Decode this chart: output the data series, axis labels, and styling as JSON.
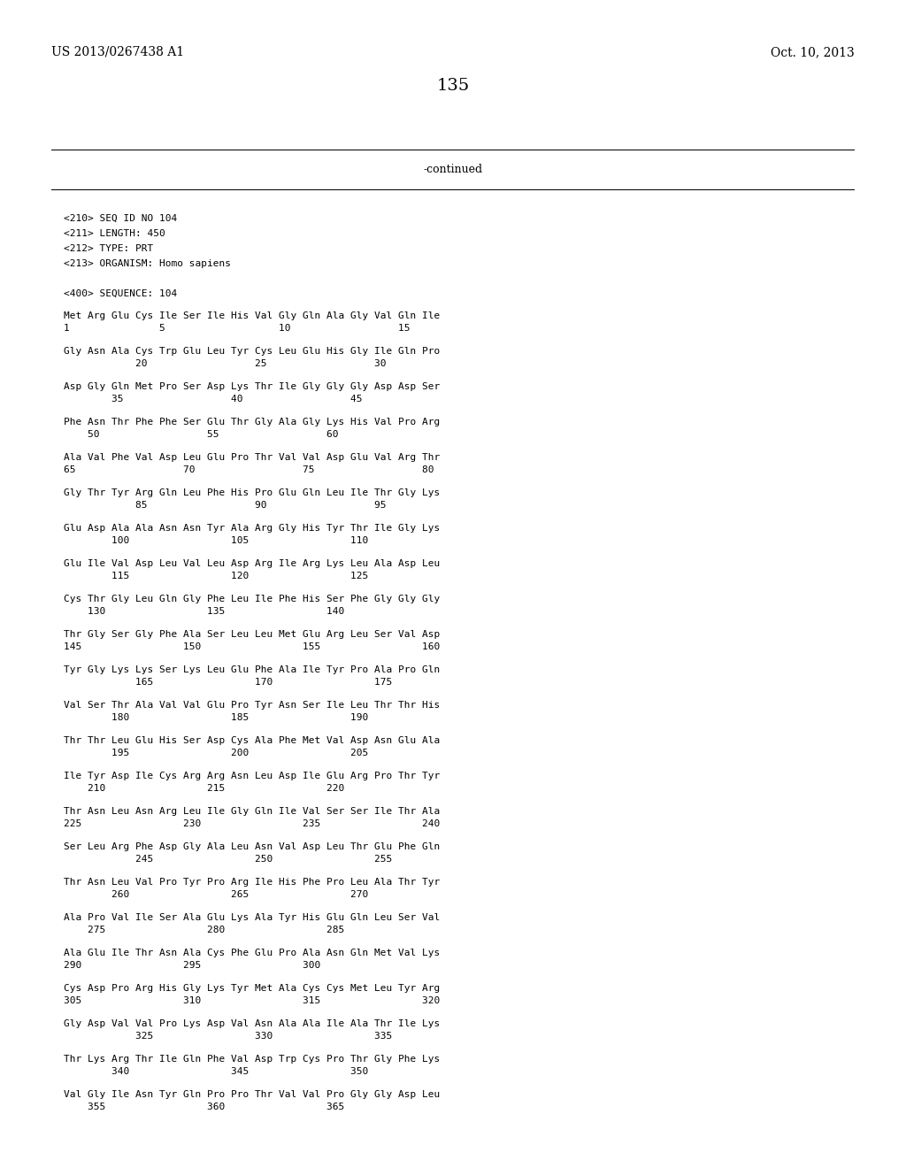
{
  "header_left": "US 2013/0267438 A1",
  "header_right": "Oct. 10, 2013",
  "page_number": "135",
  "continued_text": "-continued",
  "background_color": "#ffffff",
  "text_color": "#000000",
  "meta_lines": [
    "<210> SEQ ID NO 104",
    "<211> LENGTH: 450",
    "<212> TYPE: PRT",
    "<213> ORGANISM: Homo sapiens",
    "",
    "<400> SEQUENCE: 104"
  ],
  "sequence_blocks": [
    [
      "Met Arg Glu Cys Ile Ser Ile His Val Gly Gln Ala Gly Val Gln Ile",
      "1               5                   10                  15"
    ],
    [
      "Gly Asn Ala Cys Trp Glu Leu Tyr Cys Leu Glu His Gly Ile Gln Pro",
      "            20                  25                  30"
    ],
    [
      "Asp Gly Gln Met Pro Ser Asp Lys Thr Ile Gly Gly Gly Asp Asp Ser",
      "        35                  40                  45"
    ],
    [
      "Phe Asn Thr Phe Phe Ser Glu Thr Gly Ala Gly Lys His Val Pro Arg",
      "    50                  55                  60"
    ],
    [
      "Ala Val Phe Val Asp Leu Glu Pro Thr Val Val Asp Glu Val Arg Thr",
      "65                  70                  75                  80"
    ],
    [
      "Gly Thr Tyr Arg Gln Leu Phe His Pro Glu Gln Leu Ile Thr Gly Lys",
      "            85                  90                  95"
    ],
    [
      "Glu Asp Ala Ala Asn Asn Tyr Ala Arg Gly His Tyr Thr Ile Gly Lys",
      "        100                 105                 110"
    ],
    [
      "Glu Ile Val Asp Leu Val Leu Asp Arg Ile Arg Lys Leu Ala Asp Leu",
      "        115                 120                 125"
    ],
    [
      "Cys Thr Gly Leu Gln Gly Phe Leu Ile Phe His Ser Phe Gly Gly Gly",
      "    130                 135                 140"
    ],
    [
      "Thr Gly Ser Gly Phe Ala Ser Leu Leu Met Glu Arg Leu Ser Val Asp",
      "145                 150                 155                 160"
    ],
    [
      "Tyr Gly Lys Lys Ser Lys Leu Glu Phe Ala Ile Tyr Pro Ala Pro Gln",
      "            165                 170                 175"
    ],
    [
      "Val Ser Thr Ala Val Val Glu Pro Tyr Asn Ser Ile Leu Thr Thr His",
      "        180                 185                 190"
    ],
    [
      "Thr Thr Leu Glu His Ser Asp Cys Ala Phe Met Val Asp Asn Glu Ala",
      "        195                 200                 205"
    ],
    [
      "Ile Tyr Asp Ile Cys Arg Arg Asn Leu Asp Ile Glu Arg Pro Thr Tyr",
      "    210                 215                 220"
    ],
    [
      "Thr Asn Leu Asn Arg Leu Ile Gly Gln Ile Val Ser Ser Ile Thr Ala",
      "225                 230                 235                 240"
    ],
    [
      "Ser Leu Arg Phe Asp Gly Ala Leu Asn Val Asp Leu Thr Glu Phe Gln",
      "            245                 250                 255"
    ],
    [
      "Thr Asn Leu Val Pro Tyr Pro Arg Ile His Phe Pro Leu Ala Thr Tyr",
      "        260                 265                 270"
    ],
    [
      "Ala Pro Val Ile Ser Ala Glu Lys Ala Tyr His Glu Gln Leu Ser Val",
      "    275                 280                 285"
    ],
    [
      "Ala Glu Ile Thr Asn Ala Cys Phe Glu Pro Ala Asn Gln Met Val Lys",
      "290                 295                 300"
    ],
    [
      "Cys Asp Pro Arg His Gly Lys Tyr Met Ala Cys Cys Met Leu Tyr Arg",
      "305                 310                 315                 320"
    ],
    [
      "Gly Asp Val Val Pro Lys Asp Val Asn Ala Ala Ile Ala Thr Ile Lys",
      "            325                 330                 335"
    ],
    [
      "Thr Lys Arg Thr Ile Gln Phe Val Asp Trp Cys Pro Thr Gly Phe Lys",
      "        340                 345                 350"
    ],
    [
      "Val Gly Ile Asn Tyr Gln Pro Pro Thr Val Val Pro Gly Gly Asp Leu",
      "    355                 360                 365"
    ]
  ]
}
